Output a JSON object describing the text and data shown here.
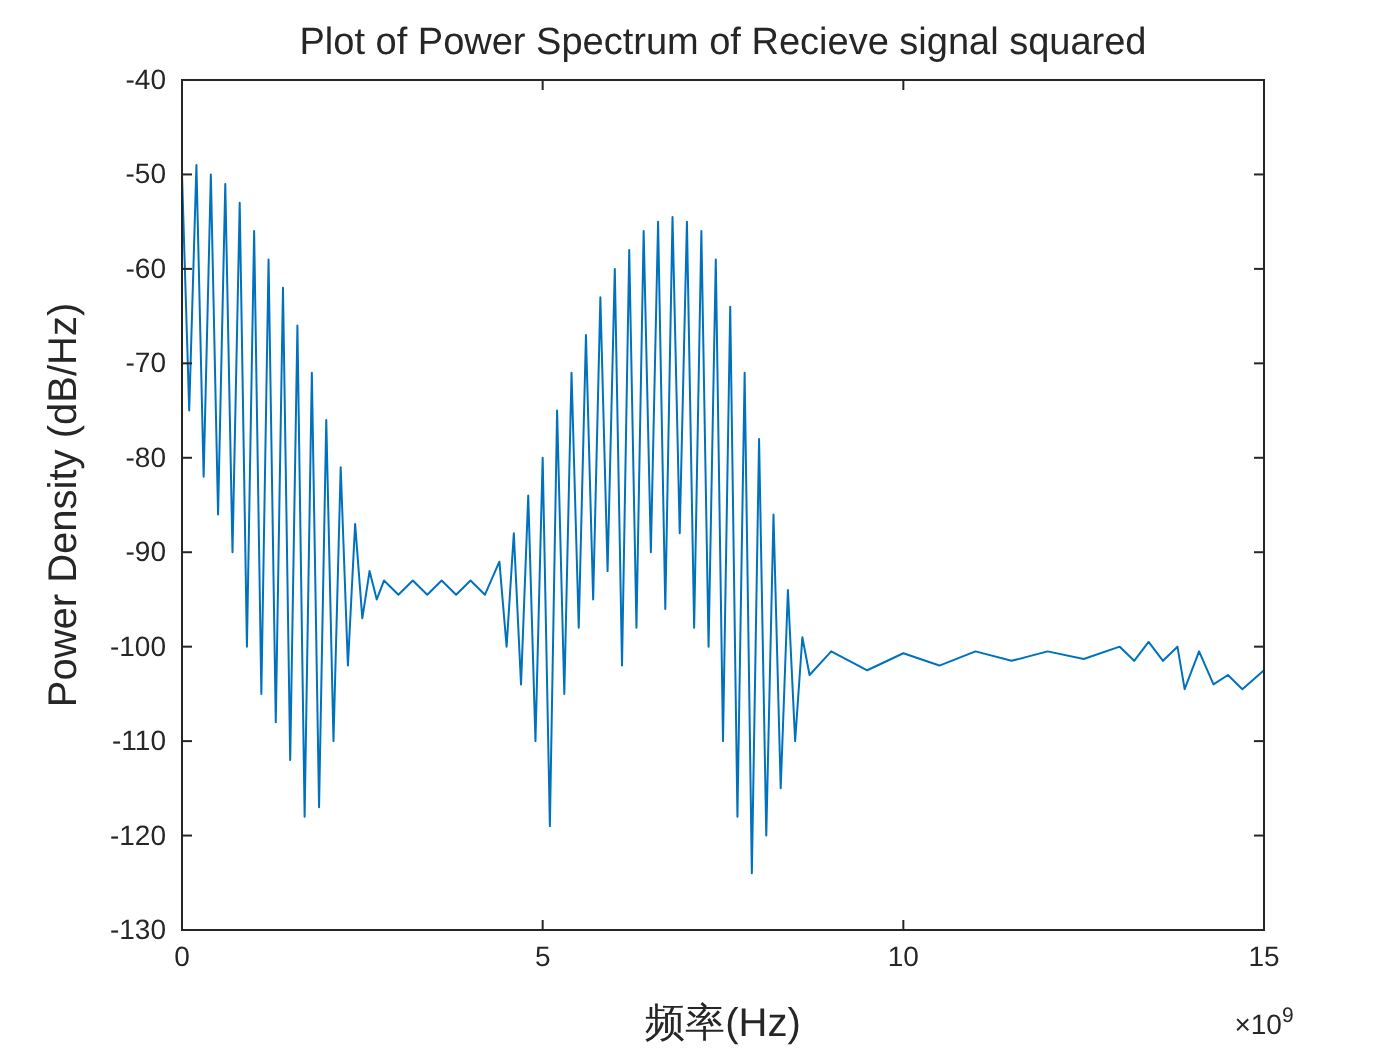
{
  "chart_data": {
    "type": "line",
    "title": "Plot of Power Spectrum of Recieve signal squared",
    "xlabel": "频率(Hz)",
    "ylabel": "Power Density (dB/Hz)",
    "annotations": [
      "×10$^{9}$"
    ],
    "xlim": [
      0,
      15
    ],
    "xticks": [
      0,
      5,
      10,
      15
    ],
    "ylim": [
      -130,
      -40
    ],
    "yticks": [
      -130,
      -120,
      -110,
      -100,
      -90,
      -80,
      -70,
      -60,
      -50,
      -40
    ],
    "grid": false,
    "marker": "none",
    "line_style": "solid",
    "series": [
      {
        "color": "#0072bd",
        "x": [
          0,
          0.1,
          0.2,
          0.3,
          0.4,
          0.5,
          0.6,
          0.7,
          0.8,
          0.9,
          1.0,
          1.1,
          1.2,
          1.3,
          1.4,
          1.5,
          1.6,
          1.7,
          1.8,
          1.9,
          2.0,
          2.1,
          2.2,
          2.3,
          2.4,
          2.5,
          2.6,
          2.7,
          2.8,
          3.0,
          3.2,
          3.4,
          3.6,
          3.8,
          4.0,
          4.2,
          4.4,
          4.5,
          4.6,
          4.7,
          4.8,
          4.9,
          5.0,
          5.1,
          5.2,
          5.3,
          5.4,
          5.5,
          5.6,
          5.7,
          5.8,
          5.9,
          6.0,
          6.1,
          6.2,
          6.3,
          6.4,
          6.5,
          6.6,
          6.7,
          6.8,
          6.9,
          7.0,
          7.1,
          7.2,
          7.3,
          7.4,
          7.5,
          7.6,
          7.7,
          7.8,
          7.9,
          8.0,
          8.1,
          8.2,
          8.3,
          8.4,
          8.5,
          8.6,
          8.7,
          9,
          9.5,
          10,
          10.5,
          11,
          11.5,
          12,
          12.5,
          13,
          13.2,
          13.4,
          13.6,
          13.8,
          13.9,
          14.1,
          14.3,
          14.5,
          14.7,
          15
        ],
        "values": [
          -50,
          -75,
          -49,
          -82,
          -50,
          -86,
          -51,
          -90,
          -53,
          -100,
          -56,
          -105,
          -59,
          -108,
          -62,
          -112,
          -66,
          -118,
          -71,
          -117,
          -76,
          -110,
          -81,
          -102,
          -87,
          -97,
          -92,
          -95,
          -93,
          -94.5,
          -93,
          -94.5,
          -93,
          -94.5,
          -93,
          -94.5,
          -91,
          -100,
          -88,
          -104,
          -84,
          -110,
          -80,
          -119,
          -75,
          -105,
          -71,
          -98,
          -67,
          -95,
          -63,
          -92,
          -60,
          -102,
          -58,
          -98,
          -56,
          -90,
          -55,
          -96,
          -54.5,
          -88,
          -55,
          -98,
          -56,
          -100,
          -59,
          -110,
          -64,
          -118,
          -71,
          -124,
          -78,
          -120,
          -86,
          -115,
          -94,
          -110,
          -99,
          -103,
          -100.5,
          -102.5,
          -100.7,
          -102,
          -100.5,
          -101.5,
          -100.5,
          -101.3,
          -100,
          -101.5,
          -99.5,
          -101.5,
          -100,
          -104.5,
          -100.5,
          -104,
          -103,
          -104.5,
          -102.5
        ]
      }
    ]
  }
}
